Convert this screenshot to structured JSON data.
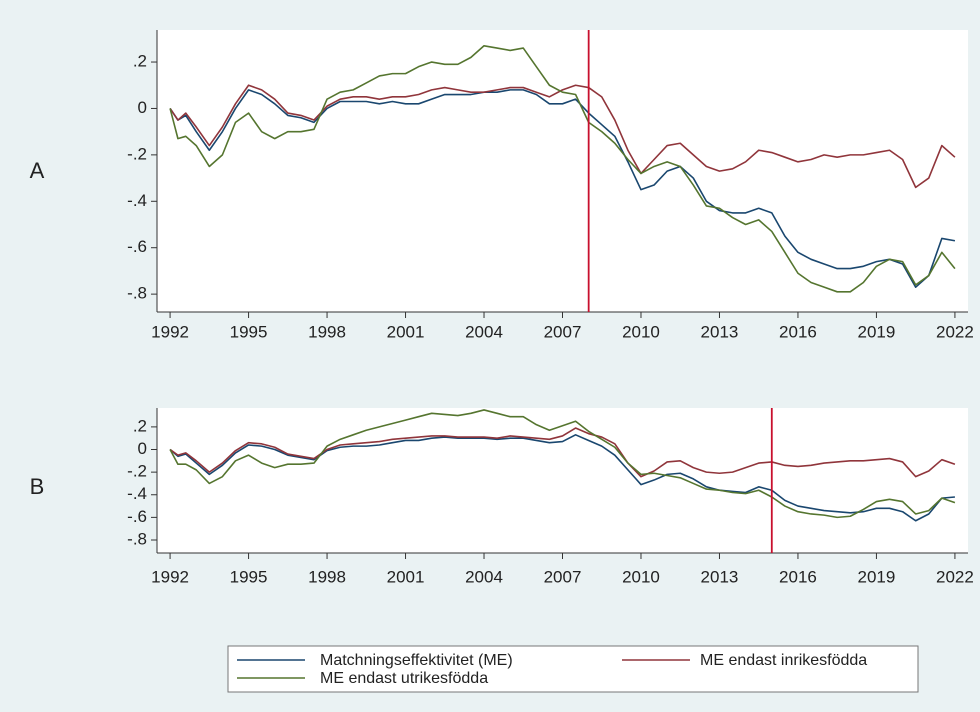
{
  "chart_data": [
    {
      "type": "line",
      "label": "A",
      "vline": 2008,
      "vline_color": "#c8102e",
      "x": [
        1992,
        1992.3,
        1992.6,
        1993,
        1993.5,
        1994,
        1994.5,
        1995,
        1995.5,
        1996,
        1996.5,
        1997,
        1997.5,
        1998,
        1998.5,
        1999,
        1999.5,
        2000,
        2000.5,
        2001,
        2001.5,
        2002,
        2002.5,
        2003,
        2003.5,
        2004,
        2004.5,
        2005,
        2005.5,
        2006,
        2006.5,
        2007,
        2007.5,
        2008,
        2008.5,
        2009,
        2009.5,
        2010,
        2010.5,
        2011,
        2011.5,
        2012,
        2012.5,
        2013,
        2013.5,
        2014,
        2014.5,
        2015,
        2015.5,
        2016,
        2016.5,
        2017,
        2017.5,
        2018,
        2018.5,
        2019,
        2019.5,
        2020,
        2020.5,
        2021,
        2021.5,
        2022
      ],
      "xlim": [
        1991.5,
        2022.5
      ],
      "xticks": [
        1992,
        1995,
        1998,
        2001,
        2004,
        2007,
        2010,
        2013,
        2016,
        2019,
        2022
      ],
      "ylim": [
        -0.877,
        0.338
      ],
      "yticks": [
        {
          "value": 0.2,
          "label": ".2"
        },
        0,
        {
          "value": -0.2,
          "label": "-.2"
        },
        {
          "value": -0.4,
          "label": "-.4"
        },
        {
          "value": -0.6,
          "label": "-.6"
        },
        {
          "value": -0.8,
          "label": "-.8"
        }
      ],
      "series": [
        {
          "name": "Matchningseffektivitet (ME)",
          "color": "#1a476f",
          "values": [
            0,
            -0.05,
            -0.03,
            -0.1,
            -0.18,
            -0.1,
            0,
            0.08,
            0.06,
            0.02,
            -0.03,
            -0.04,
            -0.06,
            0,
            0.03,
            0.03,
            0.03,
            0.02,
            0.03,
            0.02,
            0.02,
            0.04,
            0.06,
            0.06,
            0.06,
            0.07,
            0.07,
            0.08,
            0.08,
            0.06,
            0.02,
            0.02,
            0.04,
            -0.02,
            -0.07,
            -0.12,
            -0.23,
            -0.35,
            -0.33,
            -0.27,
            -0.25,
            -0.3,
            -0.4,
            -0.44,
            -0.45,
            -0.45,
            -0.43,
            -0.45,
            -0.55,
            -0.62,
            -0.65,
            -0.67,
            -0.69,
            -0.69,
            -0.68,
            -0.66,
            -0.65,
            -0.67,
            -0.77,
            -0.72,
            -0.56,
            -0.57
          ]
        },
        {
          "name": "ME endast inrikesfödda",
          "color": "#90353b",
          "values": [
            0,
            -0.05,
            -0.02,
            -0.08,
            -0.16,
            -0.08,
            0.02,
            0.1,
            0.08,
            0.04,
            -0.02,
            -0.03,
            -0.05,
            0.01,
            0.04,
            0.05,
            0.05,
            0.04,
            0.05,
            0.05,
            0.06,
            0.08,
            0.09,
            0.08,
            0.07,
            0.07,
            0.08,
            0.09,
            0.09,
            0.07,
            0.05,
            0.08,
            0.1,
            0.09,
            0.05,
            -0.05,
            -0.18,
            -0.28,
            -0.22,
            -0.16,
            -0.15,
            -0.2,
            -0.25,
            -0.27,
            -0.26,
            -0.23,
            -0.18,
            -0.19,
            -0.21,
            -0.23,
            -0.22,
            -0.2,
            -0.21,
            -0.2,
            -0.2,
            -0.19,
            -0.18,
            -0.22,
            -0.34,
            -0.3,
            -0.16,
            -0.21
          ]
        },
        {
          "name": "ME endast utrikesfödda",
          "color": "#55752f",
          "values": [
            0,
            -0.13,
            -0.12,
            -0.16,
            -0.25,
            -0.2,
            -0.06,
            -0.02,
            -0.1,
            -0.13,
            -0.1,
            -0.1,
            -0.09,
            0.04,
            0.07,
            0.08,
            0.11,
            0.14,
            0.15,
            0.15,
            0.18,
            0.2,
            0.19,
            0.19,
            0.22,
            0.27,
            0.26,
            0.25,
            0.26,
            0.18,
            0.1,
            0.07,
            0.06,
            -0.06,
            -0.1,
            -0.15,
            -0.22,
            -0.28,
            -0.25,
            -0.23,
            -0.25,
            -0.33,
            -0.42,
            -0.43,
            -0.47,
            -0.5,
            -0.48,
            -0.53,
            -0.62,
            -0.71,
            -0.75,
            -0.77,
            -0.79,
            -0.79,
            -0.75,
            -0.68,
            -0.65,
            -0.66,
            -0.76,
            -0.72,
            -0.62,
            -0.69
          ]
        }
      ]
    },
    {
      "type": "line",
      "label": "B",
      "vline": 2015,
      "vline_color": "#c8102e",
      "x": [
        1992,
        1992.3,
        1992.6,
        1993,
        1993.5,
        1994,
        1994.5,
        1995,
        1995.5,
        1996,
        1996.5,
        1997,
        1997.5,
        1998,
        1998.5,
        1999,
        1999.5,
        2000,
        2000.5,
        2001,
        2001.5,
        2002,
        2002.5,
        2003,
        2003.5,
        2004,
        2004.5,
        2005,
        2005.5,
        2006,
        2006.5,
        2007,
        2007.5,
        2008,
        2008.5,
        2009,
        2009.5,
        2010,
        2010.5,
        2011,
        2011.5,
        2012,
        2012.5,
        2013,
        2013.5,
        2014,
        2014.5,
        2015,
        2015.5,
        2016,
        2016.5,
        2017,
        2017.5,
        2018,
        2018.5,
        2019,
        2019.5,
        2020,
        2020.5,
        2021,
        2021.5,
        2022
      ],
      "xlim": [
        1991.5,
        2022.5
      ],
      "xticks": [
        1992,
        1995,
        1998,
        2001,
        2004,
        2007,
        2010,
        2013,
        2016,
        2019,
        2022
      ],
      "ylim": [
        -0.915,
        0.367
      ],
      "yticks": [
        {
          "value": 0.2,
          "label": ".2"
        },
        0,
        {
          "value": -0.2,
          "label": "-.2"
        },
        {
          "value": -0.4,
          "label": "-.4"
        },
        {
          "value": -0.6,
          "label": "-.6"
        },
        {
          "value": -0.8,
          "label": "-.8"
        }
      ],
      "series": [
        {
          "name": "Matchningseffektivitet (ME)",
          "color": "#1a476f",
          "values": [
            0,
            -0.06,
            -0.04,
            -0.12,
            -0.22,
            -0.14,
            -0.03,
            0.04,
            0.03,
            0,
            -0.05,
            -0.07,
            -0.09,
            -0.01,
            0.02,
            0.03,
            0.03,
            0.04,
            0.06,
            0.08,
            0.08,
            0.1,
            0.11,
            0.1,
            0.1,
            0.1,
            0.09,
            0.1,
            0.1,
            0.08,
            0.06,
            0.07,
            0.13,
            0.08,
            0.03,
            -0.05,
            -0.18,
            -0.31,
            -0.27,
            -0.22,
            -0.21,
            -0.26,
            -0.33,
            -0.36,
            -0.37,
            -0.38,
            -0.33,
            -0.36,
            -0.45,
            -0.5,
            -0.52,
            -0.54,
            -0.55,
            -0.56,
            -0.55,
            -0.52,
            -0.52,
            -0.55,
            -0.63,
            -0.57,
            -0.43,
            -0.42
          ]
        },
        {
          "name": "ME endast inrikesfödda",
          "color": "#90353b",
          "values": [
            0,
            -0.05,
            -0.03,
            -0.1,
            -0.2,
            -0.12,
            -0.01,
            0.06,
            0.05,
            0.02,
            -0.04,
            -0.06,
            -0.08,
            0,
            0.04,
            0.05,
            0.06,
            0.07,
            0.09,
            0.1,
            0.11,
            0.12,
            0.12,
            0.11,
            0.11,
            0.11,
            0.1,
            0.12,
            0.11,
            0.1,
            0.09,
            0.12,
            0.19,
            0.14,
            0.11,
            0.05,
            -0.12,
            -0.24,
            -0.19,
            -0.11,
            -0.1,
            -0.16,
            -0.2,
            -0.21,
            -0.2,
            -0.16,
            -0.12,
            -0.11,
            -0.14,
            -0.15,
            -0.14,
            -0.12,
            -0.11,
            -0.1,
            -0.1,
            -0.09,
            -0.08,
            -0.11,
            -0.24,
            -0.19,
            -0.09,
            -0.13
          ]
        },
        {
          "name": "ME endast utrikesfödda",
          "color": "#55752f",
          "values": [
            0,
            -0.13,
            -0.13,
            -0.18,
            -0.3,
            -0.24,
            -0.1,
            -0.05,
            -0.12,
            -0.16,
            -0.13,
            -0.13,
            -0.12,
            0.03,
            0.09,
            0.13,
            0.17,
            0.2,
            0.23,
            0.26,
            0.29,
            0.32,
            0.31,
            0.3,
            0.32,
            0.35,
            0.32,
            0.29,
            0.29,
            0.22,
            0.17,
            0.21,
            0.25,
            0.16,
            0.09,
            0.02,
            -0.12,
            -0.22,
            -0.21,
            -0.23,
            -0.25,
            -0.3,
            -0.35,
            -0.36,
            -0.38,
            -0.39,
            -0.36,
            -0.42,
            -0.5,
            -0.55,
            -0.57,
            -0.58,
            -0.6,
            -0.59,
            -0.53,
            -0.46,
            -0.44,
            -0.46,
            -0.57,
            -0.54,
            -0.43,
            -0.47
          ]
        }
      ]
    }
  ]
}
